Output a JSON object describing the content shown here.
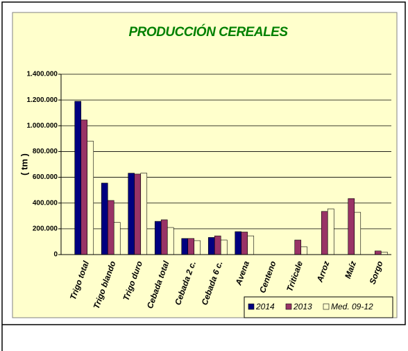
{
  "chart_data": {
    "type": "bar",
    "title": "PRODUCCIÓN CEREALES",
    "y_label": "( tm )",
    "categories": [
      "Trigo total",
      "Trigo blando",
      "Trigo duro",
      "Cebada total",
      "Cebada 2 c.",
      "Cebada 6 c.",
      "Avena",
      "Centeno",
      "Triticale",
      "Arroz",
      "Maíz",
      "Sorgo"
    ],
    "series": [
      {
        "name": "2014",
        "color": "#000080",
        "values": [
          1190000,
          555000,
          632000,
          258000,
          125000,
          133000,
          178000,
          0,
          0,
          0,
          0,
          0
        ]
      },
      {
        "name": "2013",
        "color": "#993366",
        "values": [
          1045000,
          420000,
          625000,
          270000,
          125000,
          145000,
          175000,
          0,
          113000,
          335000,
          435000,
          28000
        ]
      },
      {
        "name": "Med. 09-12",
        "color": "#ffffcc",
        "values": [
          880000,
          250000,
          632000,
          210000,
          108000,
          113000,
          145000,
          0,
          60000,
          355000,
          328000,
          20000
        ]
      }
    ],
    "ylim": [
      0,
      1400000
    ],
    "yticks": [
      0,
      {
        "value": 200000,
        "label": "200.000"
      },
      {
        "value": 400000,
        "label": "400.000"
      },
      {
        "value": 600000,
        "label": "600.000"
      },
      {
        "value": 800000,
        "label": "800.000"
      },
      {
        "value": 1000000,
        "label": "1.000.000"
      },
      {
        "value": 1200000,
        "label": "1.200.000"
      },
      {
        "value": 1400000,
        "label": "1.400.000"
      }
    ],
    "grid": true,
    "legend": "bottom-right"
  }
}
